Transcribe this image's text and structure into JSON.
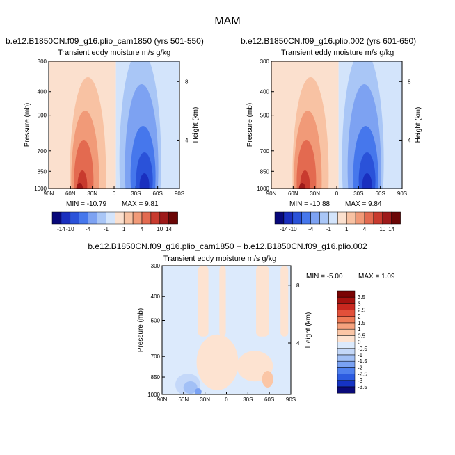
{
  "figure": {
    "season": "MAM",
    "diff_title": "b.e12.B1850CN.f09_g16.plio_cam1850 − b.e12.B1850CN.f09_g16.plio.002"
  },
  "colors": {
    "main_levels": [
      "#08087a",
      "#1a2fbf",
      "#2a52d9",
      "#4677ec",
      "#7da2f2",
      "#a9c6f6",
      "#d3e4fb",
      "#fbe0ce",
      "#f8c2a3",
      "#f19a78",
      "#e36a50",
      "#c83a2e",
      "#9e1a1a",
      "#6b0606"
    ],
    "diff_levels": [
      "#0a0a7a",
      "#1533c4",
      "#2c5be0",
      "#4f80ee",
      "#7aa2f3",
      "#a2c0f6",
      "#c4d8f9",
      "#dceafc",
      "#fde3d1",
      "#fbc6a6",
      "#f6a27e",
      "#ee7b57",
      "#e2503a",
      "#c8281f",
      "#a5120f",
      "#7a0303"
    ]
  },
  "chart_data": [
    {
      "type": "heatmap",
      "id": "left",
      "title": "b.e12.B1850CN.f09_g16.plio_cam1850 (yrs 501-550)",
      "subtitle": "Transient eddy moisture m/s g/kg",
      "xlabel": "",
      "ylabel": "Pressure (mb)",
      "y2label": "Height (km)",
      "x_ticks": [
        "90N",
        "60N",
        "30N",
        "0",
        "30S",
        "60S",
        "90S"
      ],
      "y_ticks": [
        "300",
        "400",
        "500",
        "700",
        "850",
        "1000"
      ],
      "y2_ticks": [
        "8",
        "4"
      ],
      "min_label": "MIN = -10.79",
      "max_label": "MAX =   9.81",
      "min": -10.79,
      "max": 9.81,
      "colorbar_labels": [
        "-14",
        "-10",
        "-4",
        "-1",
        "1",
        "4",
        "10",
        "14"
      ],
      "colorbar_levels": [
        -14,
        -12,
        -10,
        -8,
        -4,
        -2,
        -1,
        0,
        1,
        2,
        4,
        8,
        10,
        12,
        14
      ]
    },
    {
      "type": "heatmap",
      "id": "right",
      "title": "b.e12.B1850CN.f09_g16.plio.002 (yrs 601-650)",
      "subtitle": "Transient eddy moisture m/s g/kg",
      "xlabel": "",
      "ylabel": "Pressure (mb)",
      "y2label": "Height (km)",
      "x_ticks": [
        "90N",
        "60N",
        "30N",
        "0",
        "30S",
        "60S",
        "90S"
      ],
      "y_ticks": [
        "300",
        "400",
        "500",
        "700",
        "850",
        "1000"
      ],
      "y2_ticks": [
        "8",
        "4"
      ],
      "min_label": "MIN = -10.88",
      "max_label": "MAX =   9.84",
      "min": -10.88,
      "max": 9.84,
      "colorbar_labels": [
        "-14",
        "-10",
        "-4",
        "-1",
        "1",
        "4",
        "10",
        "14"
      ],
      "colorbar_levels": [
        -14,
        -12,
        -10,
        -8,
        -4,
        -2,
        -1,
        0,
        1,
        2,
        4,
        8,
        10,
        12,
        14
      ]
    },
    {
      "type": "heatmap",
      "id": "diff",
      "title": "b.e12.B1850CN.f09_g16.plio_cam1850 − b.e12.B1850CN.f09_g16.plio.002",
      "subtitle": "Transient eddy moisture m/s g/kg",
      "xlabel": "",
      "ylabel": "Pressure (mb)",
      "y2label": "Height (km)",
      "x_ticks": [
        "90N",
        "60N",
        "30N",
        "0",
        "30S",
        "60S",
        "90S"
      ],
      "y_ticks": [
        "300",
        "400",
        "500",
        "700",
        "850",
        "1000"
      ],
      "y2_ticks": [
        "8",
        "4"
      ],
      "min_label": "MIN = -5.00",
      "max_label": "MAX =   1.09",
      "min": -5.0,
      "max": 1.09,
      "colorbar_labels": [
        "3.5",
        "3",
        "2.5",
        "2",
        "1.5",
        "1",
        "0.5",
        "0",
        "-0.5",
        "-1",
        "-1.5",
        "-2",
        "-2.5",
        "-3",
        "-3.5"
      ],
      "colorbar_levels": [
        -4,
        -3.5,
        -3,
        -2.5,
        -2,
        -1.5,
        -1,
        -0.5,
        0,
        0.5,
        1,
        1.5,
        2,
        2.5,
        3,
        3.5,
        4
      ]
    }
  ]
}
